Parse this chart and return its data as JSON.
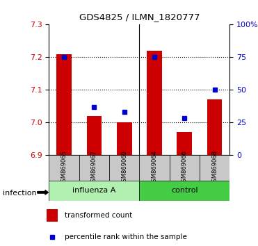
{
  "title": "GDS4825 / ILMN_1820777",
  "samples": [
    "GSM869065",
    "GSM869067",
    "GSM869069",
    "GSM869064",
    "GSM869066",
    "GSM869068"
  ],
  "red_values": [
    7.21,
    7.02,
    7.0,
    7.22,
    6.97,
    7.07
  ],
  "blue_pct": [
    75,
    37,
    33,
    75,
    28,
    50
  ],
  "ylim_left": [
    6.9,
    7.3
  ],
  "ylim_right": [
    0,
    100
  ],
  "yticks_left": [
    6.9,
    7.0,
    7.1,
    7.2,
    7.3
  ],
  "yticks_right": [
    0,
    25,
    50,
    75,
    100
  ],
  "ytick_labels_right": [
    "0",
    "25",
    "50",
    "75",
    "100%"
  ],
  "red_color": "#CC0000",
  "blue_color": "#0000CC",
  "sample_bg_color": "#c8c8c8",
  "influenza_color": "#b2f0b2",
  "control_color": "#44cc44",
  "legend_red": "transformed count",
  "legend_blue": "percentile rank within the sample",
  "infection_label": "infection",
  "grid_yticks": [
    7.0,
    7.1,
    7.2
  ]
}
